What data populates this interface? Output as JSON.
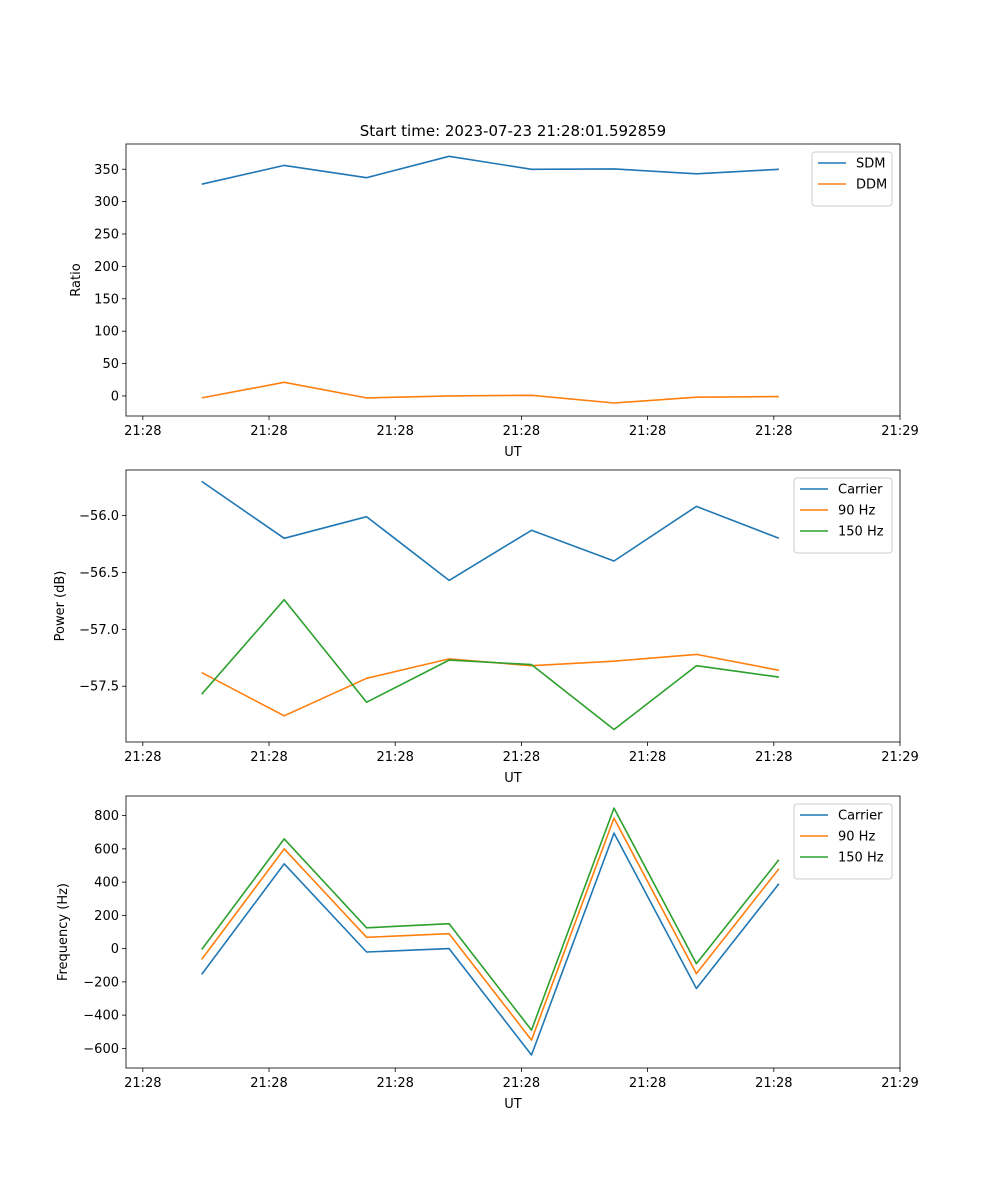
{
  "chart_data": [
    {
      "type": "line",
      "title": "Start time: 2023-07-23 21:28:01.592859",
      "xlabel": "UT",
      "ylabel": "Ratio",
      "xlim": [
        0,
        9.2
      ],
      "x_ticks": [
        0.2,
        1.7,
        3.2,
        4.7,
        6.2,
        7.7,
        9.2
      ],
      "x_tick_labels": [
        "21:28",
        "21:28",
        "21:28",
        "21:28",
        "21:28",
        "21:28",
        "21:29"
      ],
      "ylim": [
        -31,
        389
      ],
      "y_ticks": [
        0,
        50,
        100,
        150,
        200,
        250,
        300,
        350
      ],
      "y_tick_labels": [
        "0",
        "50",
        "100",
        "150",
        "200",
        "250",
        "300",
        "350"
      ],
      "x": [
        0.9,
        1.88,
        2.86,
        3.84,
        4.82,
        5.8,
        6.78,
        7.76
      ],
      "series": [
        {
          "name": "SDM",
          "color": "#1f77b4",
          "values": [
            327,
            356,
            337,
            370,
            350,
            350.5,
            343,
            350
          ]
        },
        {
          "name": "DDM",
          "color": "#ff7f0e",
          "values": [
            -3,
            21,
            -3,
            0,
            1,
            -11,
            -2,
            -1
          ]
        }
      ],
      "legend": "top-right"
    },
    {
      "type": "line",
      "title": "",
      "xlabel": "UT",
      "ylabel": "Power (dB)",
      "xlim": [
        0,
        9.2
      ],
      "x_ticks": [
        0.2,
        1.7,
        3.2,
        4.7,
        6.2,
        7.7,
        9.2
      ],
      "x_tick_labels": [
        "21:28",
        "21:28",
        "21:28",
        "21:28",
        "21:28",
        "21:28",
        "21:29"
      ],
      "ylim": [
        -57.99,
        -55.6
      ],
      "y_ticks": [
        -57.5,
        -57.0,
        -56.5,
        -56.0
      ],
      "y_tick_labels": [
        "−57.5",
        "−57.0",
        "−56.5",
        "−56.0"
      ],
      "x": [
        0.9,
        1.88,
        2.86,
        3.84,
        4.82,
        5.8,
        6.78,
        7.76
      ],
      "series": [
        {
          "name": "Carrier",
          "color": "#1f77b4",
          "values": [
            -55.7,
            -56.2,
            -56.01,
            -56.57,
            -56.13,
            -56.4,
            -55.92,
            -56.2
          ]
        },
        {
          "name": "90 Hz",
          "color": "#ff7f0e",
          "values": [
            -57.38,
            -57.76,
            -57.43,
            -57.26,
            -57.32,
            -57.28,
            -57.22,
            -57.36
          ]
        },
        {
          "name": "150 Hz",
          "color": "#2ca02c",
          "values": [
            -57.57,
            -56.74,
            -57.64,
            -57.27,
            -57.31,
            -57.88,
            -57.32,
            -57.42
          ]
        }
      ],
      "legend": "top-right"
    },
    {
      "type": "line",
      "title": "",
      "xlabel": "UT",
      "ylabel": "Frequency (Hz)",
      "xlim": [
        0,
        9.2
      ],
      "x_ticks": [
        0.2,
        1.7,
        3.2,
        4.7,
        6.2,
        7.7,
        9.2
      ],
      "x_tick_labels": [
        "21:28",
        "21:28",
        "21:28",
        "21:28",
        "21:28",
        "21:28",
        "21:29"
      ],
      "ylim": [
        -718,
        918
      ],
      "y_ticks": [
        -600,
        -400,
        -200,
        0,
        200,
        400,
        600,
        800
      ],
      "y_tick_labels": [
        "−600",
        "−400",
        "−200",
        "0",
        "200",
        "400",
        "600",
        "800"
      ],
      "x": [
        0.9,
        1.88,
        2.86,
        3.84,
        4.82,
        5.8,
        6.78,
        7.76
      ],
      "series": [
        {
          "name": "Carrier",
          "color": "#1f77b4",
          "values": [
            -155,
            510,
            -20,
            0,
            -640,
            695,
            -240,
            390
          ]
        },
        {
          "name": "90 Hz",
          "color": "#ff7f0e",
          "values": [
            -65,
            600,
            68,
            90,
            -550,
            785,
            -150,
            480
          ]
        },
        {
          "name": "150 Hz",
          "color": "#2ca02c",
          "values": [
            -5,
            660,
            125,
            150,
            -490,
            845,
            -90,
            535
          ]
        }
      ],
      "legend": "top-right"
    }
  ]
}
